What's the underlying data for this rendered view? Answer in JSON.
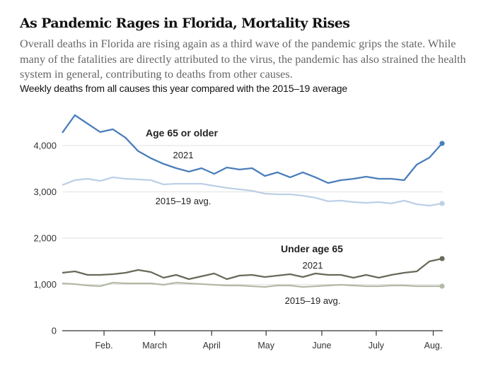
{
  "header": {
    "title": "As Pandemic Rages in Florida, Mortality Rises",
    "dek": "Overall deaths in Florida are rising again as a third wave of the pandemic grips the state. While many of the fatalities are directly attributed to the virus, the pandemic has also strained the health system in general, contributing to deaths from other causes.",
    "subhead": "Weekly deaths from all causes this year compared with the 2015–19 average"
  },
  "chart_data": {
    "type": "line",
    "title": "Weekly deaths from all causes this year compared with the 2015–19 average",
    "xlabel": "",
    "ylabel": "",
    "ylim": [
      0,
      4700
    ],
    "yticks": [
      0,
      1000,
      2000,
      3000,
      4000
    ],
    "ytick_labels": [
      "0",
      "1,000",
      "2,000",
      "3,000",
      "4,000"
    ],
    "grid": true,
    "x_unit": "week of 2021 (week index 0 = early January)",
    "xticks": [
      {
        "label": "Feb.",
        "week": 3.3
      },
      {
        "label": "March",
        "week": 7.3
      },
      {
        "label": "April",
        "week": 11.8
      },
      {
        "label": "May",
        "week": 16.1
      },
      {
        "label": "June",
        "week": 20.5
      },
      {
        "label": "July",
        "week": 24.8
      },
      {
        "label": "Aug.",
        "week": 29.3
      }
    ],
    "annotations": [
      {
        "text": "Age 65 or older",
        "group": "65plus",
        "kind": "group"
      },
      {
        "text": "2021",
        "group": "65plus",
        "kind": "series"
      },
      {
        "text": "2015–19 avg.",
        "group": "65plus",
        "kind": "series"
      },
      {
        "text": "Under age 65",
        "group": "under65",
        "kind": "group"
      },
      {
        "text": "2021",
        "group": "under65",
        "kind": "series"
      },
      {
        "text": "2015–19 avg.",
        "group": "under65",
        "kind": "series"
      }
    ],
    "series": [
      {
        "name": "Age 65 or older — 2021",
        "color": "#4a7ebb",
        "values": [
          4276,
          4657,
          4474,
          4291,
          4352,
          4169,
          3879,
          3726,
          3604,
          3512,
          3436,
          3512,
          3390,
          3527,
          3482,
          3512,
          3344,
          3421,
          3314,
          3421,
          3314,
          3191,
          3252,
          3283,
          3329,
          3283,
          3283,
          3252,
          3589,
          3741,
          4047
        ]
      },
      {
        "name": "Age 65 or older — 2015–19 avg.",
        "color": "#bdd0e7",
        "values": [
          3146,
          3253,
          3283,
          3237,
          3314,
          3283,
          3268,
          3253,
          3161,
          3176,
          3176,
          3176,
          3130,
          3085,
          3054,
          3023,
          2962,
          2947,
          2947,
          2917,
          2871,
          2795,
          2810,
          2779,
          2764,
          2779,
          2749,
          2810,
          2733,
          2703,
          2749
        ]
      },
      {
        "name": "Under age 65 — 2021",
        "color": "#676b5a",
        "values": [
          1252,
          1283,
          1206,
          1206,
          1222,
          1252,
          1313,
          1267,
          1145,
          1206,
          1115,
          1176,
          1237,
          1115,
          1191,
          1206,
          1161,
          1191,
          1222,
          1161,
          1237,
          1206,
          1206,
          1145,
          1206,
          1145,
          1206,
          1252,
          1283,
          1497,
          1558
        ]
      },
      {
        "name": "Under age 65 — 2015–19 avg.",
        "color": "#b3baa6",
        "values": [
          1023,
          1008,
          977,
          962,
          1038,
          1023,
          1023,
          1023,
          993,
          1038,
          1023,
          1008,
          993,
          977,
          977,
          962,
          947,
          977,
          977,
          947,
          962,
          977,
          993,
          977,
          962,
          962,
          977,
          977,
          962,
          962,
          962
        ]
      }
    ],
    "legend": "none (inline labels)"
  }
}
